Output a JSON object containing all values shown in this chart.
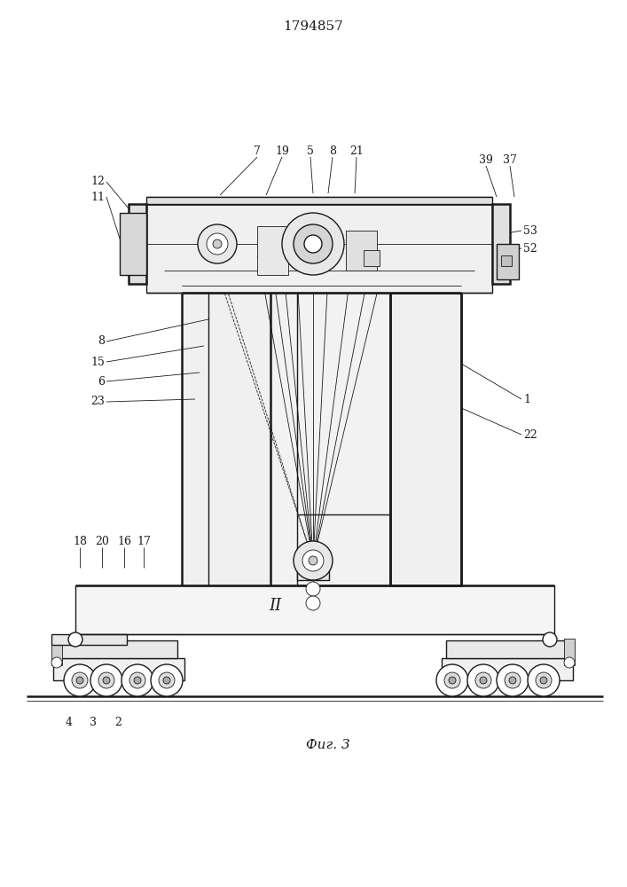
{
  "title": "1794857",
  "caption": "Фиг. 3",
  "bg_color": "#ffffff",
  "lc": "#1a1a1a",
  "lw_main": 1.0,
  "lw_thin": 0.6,
  "lw_thick": 1.8,
  "label_fs": 9,
  "title_fs": 11,
  "caption_fs": 11
}
